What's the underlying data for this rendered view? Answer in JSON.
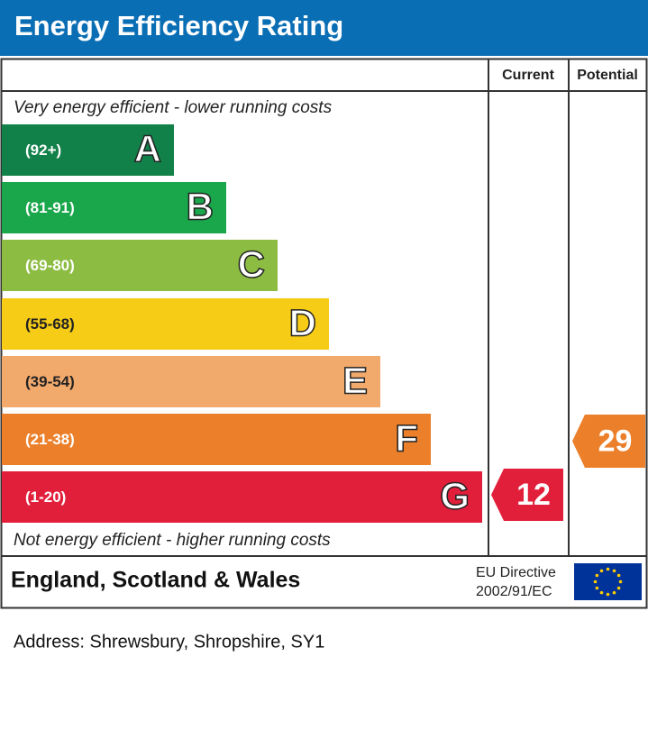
{
  "header": {
    "title": "Energy Efficiency Rating"
  },
  "columns": [
    "Current",
    "Potential"
  ],
  "top_note": "Very energy efficient - lower running costs",
  "bands": [
    {
      "range": "(92+)",
      "letter": "A",
      "color": "#128149"
    },
    {
      "range": "(81-91)",
      "letter": "B",
      "color": "#1aa64a"
    },
    {
      "range": "(69-80)",
      "letter": "C",
      "color": "#8cbc42"
    },
    {
      "range": "(55-68)",
      "letter": "D",
      "color": "#f6cc17"
    },
    {
      "range": "(39-54)",
      "letter": "E",
      "color": "#f2aa6c"
    },
    {
      "range": "(21-38)",
      "letter": "F",
      "color": "#ec7f29"
    },
    {
      "range": "(1-20)",
      "letter": "G",
      "color": "#e21f3b"
    }
  ],
  "bottom_note": "Not energy efficient - higher running costs",
  "current": {
    "value": 12,
    "color": "#e21f3b"
  },
  "potential": {
    "value": 29,
    "color": "#ec7f29"
  },
  "footer": {
    "region": "England, Scotland & Wales",
    "directive": [
      "EU Directive",
      "2002/91/EC"
    ]
  },
  "address": "Address: Shrewsbury, Shropshire, SY1"
}
